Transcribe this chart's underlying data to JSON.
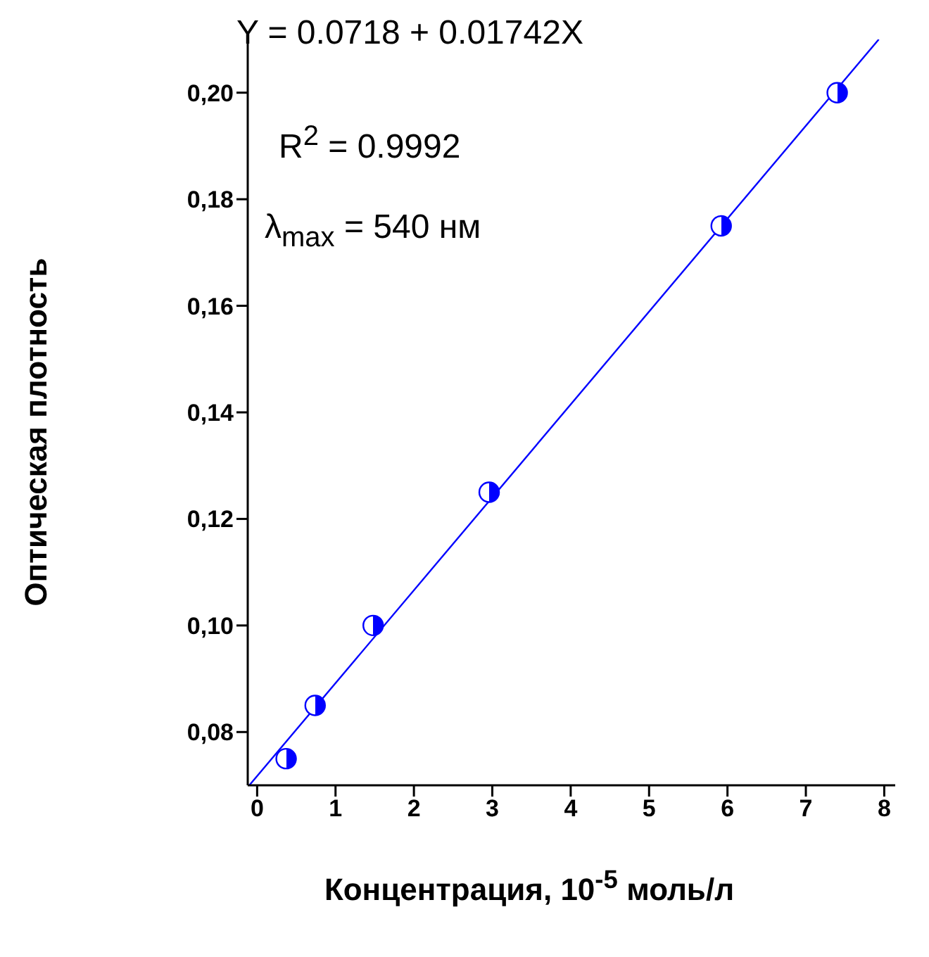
{
  "chart_data": {
    "type": "scatter",
    "xlabel": "Концентрация, 10$^{-5}$ моль/л",
    "ylabel": "Оптическая плотность",
    "annotations": [
      "Y = 0.0718 + 0.01742X",
      "R$^{2}$ = 0.9992",
      "λ$_{max}$ = 540 нм"
    ],
    "xlim": [
      -0.12,
      8.14
    ],
    "xticks": [
      0,
      1,
      2,
      3,
      4,
      5,
      6,
      7,
      8
    ],
    "ylim": [
      0.07,
      0.21
    ],
    "yticks": [
      {
        "value": 0.08,
        "label": "0,08"
      },
      {
        "value": 0.1,
        "label": "0,10"
      },
      {
        "value": 0.12,
        "label": "0,12"
      },
      {
        "value": 0.14,
        "label": "0,14"
      },
      {
        "value": 0.16,
        "label": "0,16"
      },
      {
        "value": 0.18,
        "label": "0,18"
      },
      {
        "value": 0.2,
        "label": "0,20"
      }
    ],
    "grid": false,
    "legend": false,
    "marker": "circle",
    "series": [
      {
        "color": "#0000ff",
        "x": [
          0.37,
          0.74,
          1.48,
          2.96,
          5.92,
          7.4
        ],
        "values": [
          0.075,
          0.085,
          0.1,
          0.125,
          0.175,
          0.2
        ]
      },
      {
        "type": "line",
        "color": "#0000ff",
        "line_style": "solid",
        "marker": "none",
        "x": [
          -0.1,
          7.93
        ],
        "values": [
          0.07,
          0.21
        ]
      }
    ]
  }
}
